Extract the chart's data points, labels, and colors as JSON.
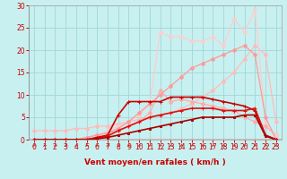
{
  "background_color": "#c8f0f0",
  "grid_color": "#a0d8d8",
  "xlabel": "Vent moyen/en rafales ( km/h )",
  "xlim": [
    -0.5,
    23.5
  ],
  "ylim": [
    0,
    30
  ],
  "yticks": [
    0,
    5,
    10,
    15,
    20,
    25,
    30
  ],
  "xticks": [
    0,
    1,
    2,
    3,
    4,
    5,
    6,
    7,
    8,
    9,
    10,
    11,
    12,
    13,
    14,
    15,
    16,
    17,
    18,
    19,
    20,
    21,
    22,
    23
  ],
  "series": [
    {
      "x": [
        0,
        1,
        2,
        3,
        4,
        5,
        6,
        7,
        8,
        9,
        10,
        11,
        12,
        13,
        14,
        15,
        16,
        17,
        18,
        19,
        20,
        21,
        22,
        23
      ],
      "y": [
        2,
        2,
        2,
        2,
        2.5,
        2.5,
        3,
        3,
        3.5,
        4,
        4.5,
        5,
        5.5,
        6,
        7,
        8,
        9.5,
        11,
        13,
        15,
        18,
        21,
        19,
        4
      ],
      "color": "#ffbbbb",
      "alpha": 1.0,
      "lw": 0.9,
      "marker": "o",
      "ms": 2.5
    },
    {
      "x": [
        0,
        1,
        2,
        3,
        4,
        5,
        6,
        7,
        8,
        9,
        10,
        11,
        12,
        13,
        14,
        15,
        16,
        17,
        18,
        19,
        20,
        21,
        22,
        23
      ],
      "y": [
        0,
        0,
        0,
        0,
        0,
        0.5,
        1,
        1.5,
        2,
        3,
        4,
        6,
        11,
        8.5,
        9,
        8.5,
        8,
        7.5,
        7,
        6.5,
        5,
        4,
        3,
        1
      ],
      "color": "#ffaaaa",
      "alpha": 1.0,
      "lw": 0.9,
      "marker": "o",
      "ms": 2.5
    },
    {
      "x": [
        0,
        1,
        2,
        3,
        4,
        5,
        6,
        7,
        8,
        9,
        10,
        11,
        12,
        13,
        14,
        15,
        16,
        17,
        18,
        19,
        20,
        21,
        22,
        23
      ],
      "y": [
        0,
        0,
        0,
        0,
        0,
        0.5,
        1,
        2,
        3,
        4,
        5.5,
        8,
        24,
        23,
        23,
        22,
        22,
        23,
        21,
        27,
        24,
        29,
        4,
        1
      ],
      "color": "#ffcccc",
      "alpha": 1.0,
      "lw": 0.9,
      "marker": "o",
      "ms": 2.5
    },
    {
      "x": [
        0,
        1,
        2,
        3,
        4,
        5,
        6,
        7,
        8,
        9,
        10,
        11,
        12,
        13,
        14,
        15,
        16,
        17,
        18,
        19,
        20,
        21,
        22,
        23
      ],
      "y": [
        0,
        0,
        0,
        0,
        0,
        0.5,
        1,
        1.5,
        2.5,
        4,
        6,
        8,
        10,
        12,
        14,
        16,
        17,
        18,
        19,
        20,
        21,
        19,
        5,
        0
      ],
      "color": "#ff9999",
      "alpha": 1.0,
      "lw": 0.9,
      "marker": "o",
      "ms": 2.5
    },
    {
      "x": [
        0,
        1,
        2,
        3,
        4,
        5,
        6,
        7,
        8,
        9,
        10,
        11,
        12,
        13,
        14,
        15,
        16,
        17,
        18,
        19,
        20,
        21,
        22,
        23
      ],
      "y": [
        0,
        0,
        0,
        0,
        0,
        0,
        0.5,
        1,
        5.5,
        8.5,
        8.5,
        8.5,
        8.5,
        9.5,
        9.5,
        9.5,
        9.5,
        9,
        8.5,
        8,
        7.5,
        6.5,
        1,
        0
      ],
      "color": "#cc0000",
      "alpha": 1.0,
      "lw": 1.2,
      "marker": "+",
      "ms": 3.5
    },
    {
      "x": [
        0,
        1,
        2,
        3,
        4,
        5,
        6,
        7,
        8,
        9,
        10,
        11,
        12,
        13,
        14,
        15,
        16,
        17,
        18,
        19,
        20,
        21,
        22,
        23
      ],
      "y": [
        0,
        0,
        0,
        0,
        0,
        0,
        0.3,
        0.8,
        2,
        3,
        4,
        5,
        5.5,
        6,
        6.5,
        7,
        7,
        7,
        6.5,
        6.5,
        6.5,
        7,
        1,
        0
      ],
      "color": "#dd1111",
      "alpha": 1.0,
      "lw": 1.2,
      "marker": "+",
      "ms": 3.5
    },
    {
      "x": [
        0,
        1,
        2,
        3,
        4,
        5,
        6,
        7,
        8,
        9,
        10,
        11,
        12,
        13,
        14,
        15,
        16,
        17,
        18,
        19,
        20,
        21,
        22,
        23
      ],
      "y": [
        0,
        0,
        0,
        0,
        0,
        0,
        0.2,
        0.5,
        1,
        1.5,
        2,
        2.5,
        3,
        3.5,
        4,
        4.5,
        5,
        5,
        5,
        5,
        5.5,
        5.5,
        0.8,
        0
      ],
      "color": "#aa0000",
      "alpha": 1.0,
      "lw": 1.2,
      "marker": "s",
      "ms": 2
    }
  ],
  "arrow_color": "#cc2222",
  "tick_fontsize": 5.5,
  "label_fontsize": 6.5
}
